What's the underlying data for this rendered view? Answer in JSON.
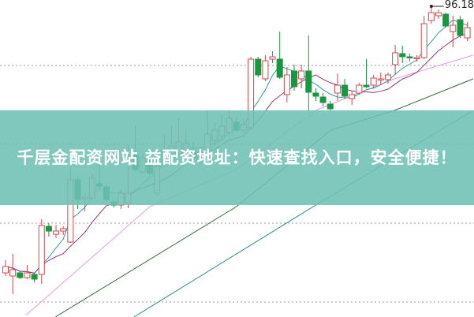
{
  "banner": {
    "title": "千层金配资网站 益配资地址：快速查找入口，安全便捷！"
  },
  "chart_data": {
    "type": "candlestick",
    "ylim": [
      76.48,
      96.58
    ],
    "grid": "horizontal dotted",
    "gridlines": [
      92.43,
      87.43,
      82.43,
      77.43
    ],
    "colors": {
      "up": "#d0484f",
      "down": "#1a9641",
      "ma5": "#3a9a9a",
      "ma10": "#8a3a7a",
      "pink": "#e89ae0",
      "darkgreen": "#2e6b2e",
      "teal": "#2a8a8a",
      "grid": "#999999"
    },
    "peak_label": "96.18",
    "candles": [
      [
        79.28,
        80.08,
        79.08,
        79.68
      ],
      [
        79.08,
        80.48,
        77.93,
        79.48
      ],
      [
        79.28,
        79.38,
        78.88,
        78.98
      ],
      [
        78.98,
        79.78,
        78.88,
        79.28
      ],
      [
        79.18,
        79.28,
        78.68,
        78.88
      ],
      [
        79.18,
        82.68,
        78.58,
        82.28
      ],
      [
        82.23,
        82.43,
        81.58,
        81.93
      ],
      [
        81.73,
        82.33,
        81.48,
        81.93
      ],
      [
        81.93,
        82.23,
        81.68,
        82.08
      ],
      [
        81.23,
        85.98,
        81.18,
        85.18
      ],
      [
        85.18,
        85.38,
        83.33,
        83.93
      ],
      [
        83.98,
        84.38,
        83.18,
        84.08
      ],
      [
        84.03,
        85.58,
        83.88,
        85.28
      ],
      [
        84.93,
        86.73,
        84.58,
        84.78
      ],
      [
        84.73,
        84.98,
        83.78,
        83.93
      ],
      [
        83.78,
        83.93,
        83.43,
        83.58
      ],
      [
        83.58,
        84.58,
        83.33,
        84.33
      ],
      [
        83.68,
        87.43,
        83.38,
        84.33
      ],
      [
        86.73,
        88.58,
        85.68,
        85.83
      ],
      [
        85.68,
        86.83,
        85.58,
        86.58
      ],
      [
        86.58,
        86.83,
        85.48,
        85.58
      ],
      [
        84.33,
        86.58,
        84.18,
        86.03
      ],
      [
        86.28,
        88.08,
        85.98,
        87.08
      ],
      [
        86.58,
        88.58,
        86.33,
        87.33
      ],
      [
        86.83,
        89.08,
        86.68,
        87.58
      ],
      [
        86.98,
        88.33,
        86.58,
        87.48
      ],
      [
        87.08,
        87.58,
        86.33,
        86.58
      ],
      [
        86.33,
        87.33,
        86.18,
        86.93
      ],
      [
        87.08,
        89.58,
        86.83,
        88.08
      ],
      [
        87.68,
        88.83,
        87.33,
        88.33
      ],
      [
        87.98,
        89.33,
        87.68,
        88.58
      ],
      [
        88.18,
        89.58,
        87.98,
        89.08
      ],
      [
        88.83,
        89.18,
        88.18,
        88.33
      ],
      [
        88.33,
        89.08,
        88.08,
        88.68
      ],
      [
        88.48,
        92.98,
        88.33,
        92.83
      ],
      [
        92.83,
        92.98,
        91.68,
        91.83
      ],
      [
        91.58,
        93.08,
        91.43,
        92.73
      ],
      [
        92.83,
        93.33,
        92.58,
        92.98
      ],
      [
        92.83,
        94.58,
        91.58,
        91.68
      ],
      [
        90.58,
        92.33,
        90.08,
        91.83
      ],
      [
        92.08,
        92.48,
        90.83,
        91.08
      ],
      [
        91.58,
        92.48,
        90.98,
        92.08
      ],
      [
        92.08,
        94.33,
        89.43,
        90.73
      ],
      [
        90.68,
        90.98,
        90.18,
        90.48
      ],
      [
        90.43,
        90.68,
        89.83,
        90.08
      ],
      [
        89.98,
        90.18,
        89.53,
        89.68
      ],
      [
        90.68,
        91.93,
        90.18,
        91.18
      ],
      [
        91.18,
        91.58,
        90.33,
        90.48
      ],
      [
        90.33,
        90.83,
        89.93,
        90.58
      ],
      [
        90.68,
        91.33,
        90.58,
        91.18
      ],
      [
        91.18,
        92.83,
        90.98,
        91.08
      ],
      [
        91.18,
        91.83,
        90.98,
        91.63
      ],
      [
        91.53,
        91.98,
        91.18,
        91.58
      ],
      [
        91.53,
        91.98,
        91.28,
        91.83
      ],
      [
        92.48,
        93.73,
        91.83,
        93.23
      ],
      [
        93.18,
        93.68,
        92.58,
        92.98
      ],
      [
        92.98,
        93.18,
        92.68,
        92.93
      ],
      [
        92.88,
        93.08,
        92.68,
        92.93
      ],
      [
        92.93,
        95.58,
        92.83,
        95.08
      ],
      [
        95.28,
        96.18,
        95.08,
        95.78
      ],
      [
        95.58,
        95.98,
        95.38,
        95.78
      ],
      [
        95.68,
        95.78,
        94.83,
        94.93
      ],
      [
        94.58,
        95.58,
        93.58,
        94.98
      ],
      [
        95.33,
        95.58,
        94.18,
        94.33
      ],
      [
        94.18,
        95.18,
        93.98,
        94.83
      ]
    ],
    "candle_fields": [
      "open",
      "high",
      "low",
      "close"
    ],
    "moving_averages": [
      {
        "period": 5,
        "color_key": "ma5"
      },
      {
        "period": 10,
        "color_key": "ma10"
      }
    ],
    "long_lines": [
      {
        "color_key": "pink",
        "points": [
          [
            2.8,
            76.58
          ],
          [
            20.0,
            83.48
          ],
          [
            32.0,
            85.83
          ],
          [
            43.0,
            89.58
          ],
          [
            53.9,
            91.58
          ],
          [
            64.8,
            93.08
          ]
        ]
      },
      {
        "color_key": "darkgreen",
        "points": [
          [
            6.9,
            76.48
          ],
          [
            32.0,
            83.48
          ],
          [
            45.1,
            88.33
          ],
          [
            53.9,
            89.58
          ],
          [
            64.8,
            91.58
          ]
        ]
      },
      {
        "color_key": "teal",
        "points": [
          [
            17.8,
            76.48
          ],
          [
            43.0,
            83.58
          ],
          [
            64.8,
            89.58
          ]
        ]
      }
    ]
  }
}
